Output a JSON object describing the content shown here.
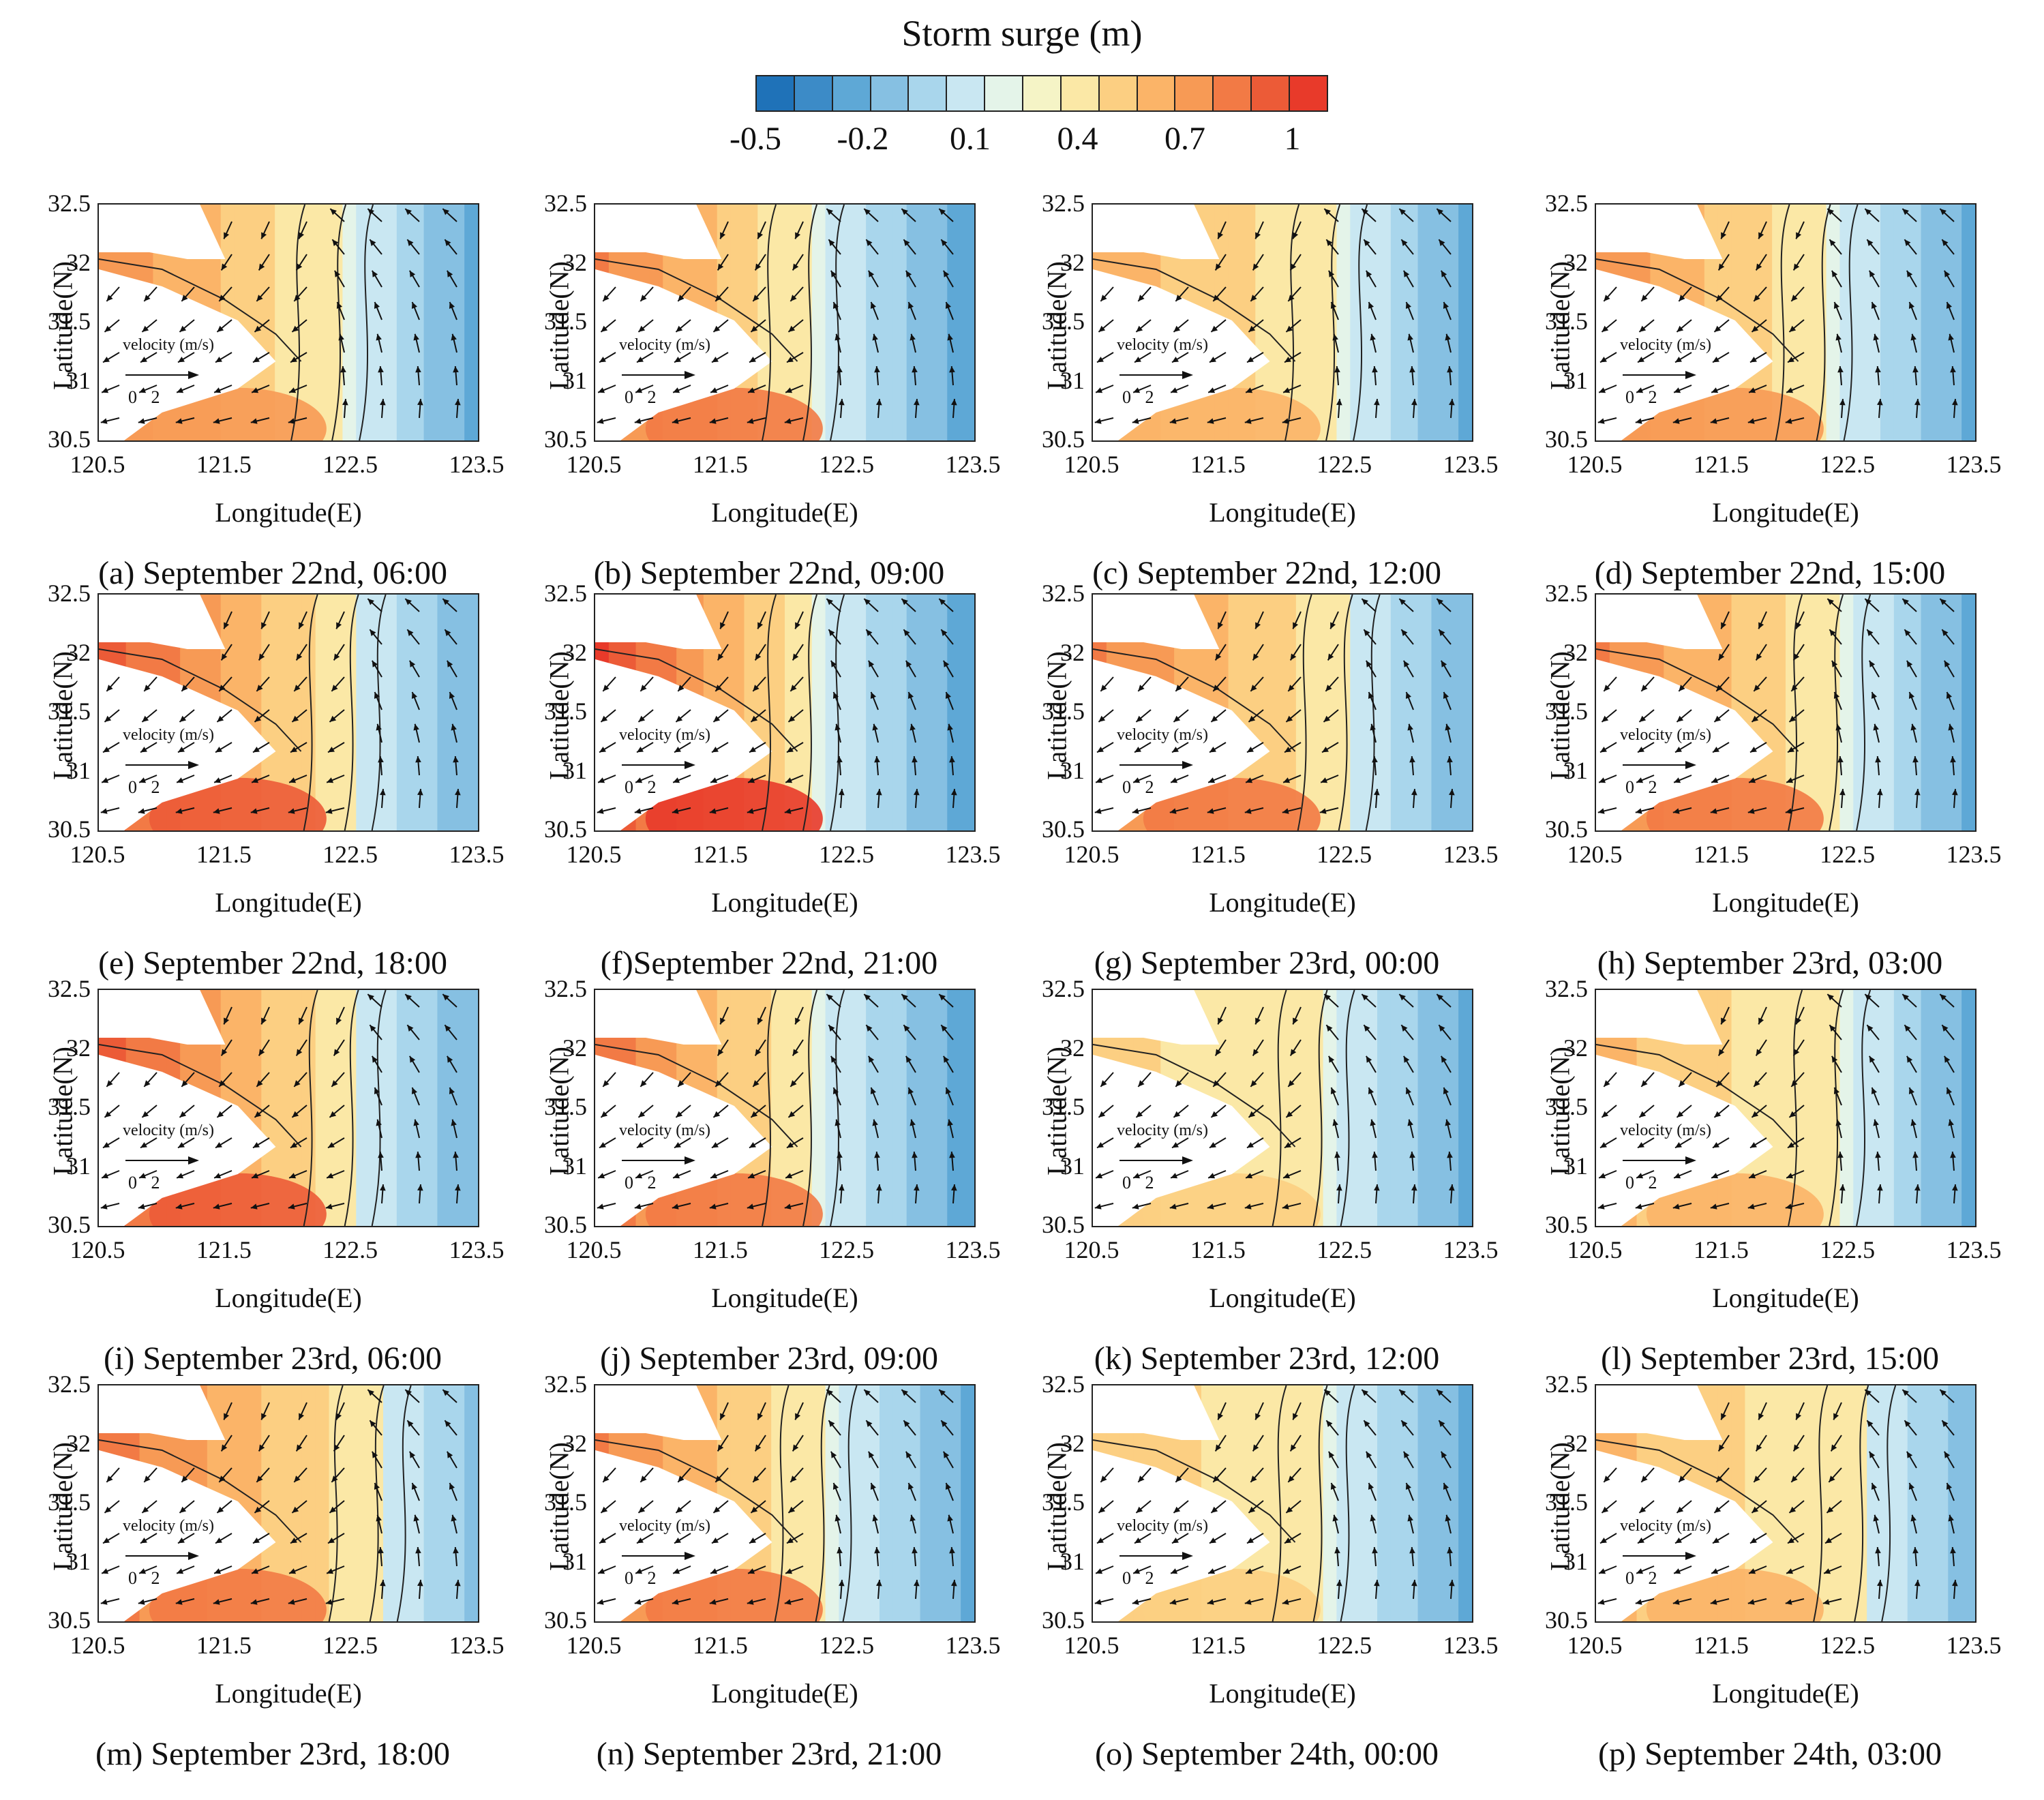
{
  "colorbar": {
    "title": "Storm surge (m)",
    "tick_labels": [
      "-0.5",
      "-0.2",
      "0.1",
      "0.4",
      "0.7",
      "1"
    ],
    "tick_values": [
      -0.5,
      -0.2,
      0.1,
      0.4,
      0.7,
      1.0
    ],
    "range": [
      -0.5,
      1.1
    ],
    "colors": [
      "#1f72b8",
      "#3c8bc7",
      "#5ea8d6",
      "#86c0e2",
      "#a9d6ec",
      "#c9e7f2",
      "#e4f4e9",
      "#f5f4c6",
      "#fbe8a6",
      "#fccf82",
      "#fbb468",
      "#f79a55",
      "#f27a45",
      "#ec5b37",
      "#e83a2a"
    ]
  },
  "axes": {
    "ylabel": "Latitude(N)",
    "xlabel": "Longitude(E)",
    "yticks": [
      "32.5",
      "32",
      "31.5",
      "31",
      "30.5"
    ],
    "xticks": [
      "120.5",
      "121.5",
      "122.5",
      "123.5"
    ],
    "lon_range": [
      120.5,
      123.5
    ],
    "lat_range": [
      30.5,
      32.5
    ]
  },
  "legend": {
    "velocity_label": "velocity (m/s)",
    "scale_ticks": "0 2"
  },
  "panels": [
    {
      "caption": "(a) September 22nd, 06:00",
      "peak": 0.75,
      "front_lon": 122.4
    },
    {
      "caption": "(b) September 22nd, 09:00",
      "peak": 0.8,
      "front_lon": 122.2
    },
    {
      "caption": "(c) September 22nd, 12:00",
      "peak": 0.65,
      "front_lon": 122.4
    },
    {
      "caption": "(d) September 22nd, 15:00",
      "peak": 0.75,
      "front_lon": 122.3
    },
    {
      "caption": "(e) September 22nd, 18:00",
      "peak": 0.95,
      "front_lon": 122.5
    },
    {
      "caption": "(f)September 22nd, 21:00",
      "peak": 1.0,
      "front_lon": 122.2
    },
    {
      "caption": "(g) September 23rd, 00:00",
      "peak": 0.8,
      "front_lon": 122.5
    },
    {
      "caption": "(h) September 23rd, 03:00",
      "peak": 0.8,
      "front_lon": 122.4
    },
    {
      "caption": "(i) September 23rd, 06:00",
      "peak": 0.95,
      "front_lon": 122.5
    },
    {
      "caption": "(j) September 23rd, 09:00",
      "peak": 0.85,
      "front_lon": 122.2
    },
    {
      "caption": "(k) September 23rd, 12:00",
      "peak": 0.5,
      "front_lon": 122.3
    },
    {
      "caption": "(l) September 23rd, 15:00",
      "peak": 0.6,
      "front_lon": 122.4
    },
    {
      "caption": "(m) September 23rd, 18:00",
      "peak": 0.85,
      "front_lon": 122.7
    },
    {
      "caption": "(n) September 23rd, 21:00",
      "peak": 0.8,
      "front_lon": 122.3
    },
    {
      "caption": "(o) September 24th, 00:00",
      "peak": 0.55,
      "front_lon": 122.3
    },
    {
      "caption": "(p) September 24th, 03:00",
      "peak": 0.6,
      "front_lon": 122.6
    }
  ]
}
